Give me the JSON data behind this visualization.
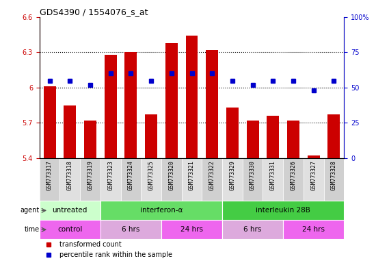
{
  "title": "GDS4390 / 1554076_s_at",
  "samples": [
    "GSM773317",
    "GSM773318",
    "GSM773319",
    "GSM773323",
    "GSM773324",
    "GSM773325",
    "GSM773320",
    "GSM773321",
    "GSM773322",
    "GSM773329",
    "GSM773330",
    "GSM773331",
    "GSM773326",
    "GSM773327",
    "GSM773328"
  ],
  "transformed_count": [
    6.01,
    5.85,
    5.72,
    6.28,
    6.3,
    5.77,
    6.38,
    6.44,
    6.32,
    5.83,
    5.72,
    5.76,
    5.72,
    5.42,
    5.77
  ],
  "percentile_rank": [
    55,
    55,
    52,
    60,
    60,
    55,
    60,
    60,
    60,
    55,
    52,
    55,
    55,
    48,
    55
  ],
  "bar_color": "#cc0000",
  "dot_color": "#0000cc",
  "ylim_left": [
    5.4,
    6.6
  ],
  "ylim_right": [
    0,
    100
  ],
  "yticks_left": [
    5.4,
    5.7,
    6.0,
    6.3,
    6.6
  ],
  "yticks_right": [
    0,
    25,
    50,
    75,
    100
  ],
  "dotted_lines": [
    5.7,
    6.0,
    6.3
  ],
  "agent_groups": [
    {
      "label": "untreated",
      "start": 0,
      "end": 3,
      "color": "#ccffcc"
    },
    {
      "label": "interferon-α",
      "start": 3,
      "end": 9,
      "color": "#66dd66"
    },
    {
      "label": "interleukin 28B",
      "start": 9,
      "end": 15,
      "color": "#44cc44"
    }
  ],
  "time_groups": [
    {
      "label": "control",
      "start": 0,
      "end": 3,
      "color": "#ee66ee"
    },
    {
      "label": "6 hrs",
      "start": 3,
      "end": 6,
      "color": "#ddaadd"
    },
    {
      "label": "24 hrs",
      "start": 6,
      "end": 9,
      "color": "#ee66ee"
    },
    {
      "label": "6 hrs",
      "start": 9,
      "end": 12,
      "color": "#ddaadd"
    },
    {
      "label": "24 hrs",
      "start": 12,
      "end": 15,
      "color": "#ee66ee"
    }
  ],
  "legend_items": [
    {
      "color": "#cc0000",
      "label": "transformed count"
    },
    {
      "color": "#0000cc",
      "label": "percentile rank within the sample"
    }
  ],
  "plot_bg": "#ffffff"
}
